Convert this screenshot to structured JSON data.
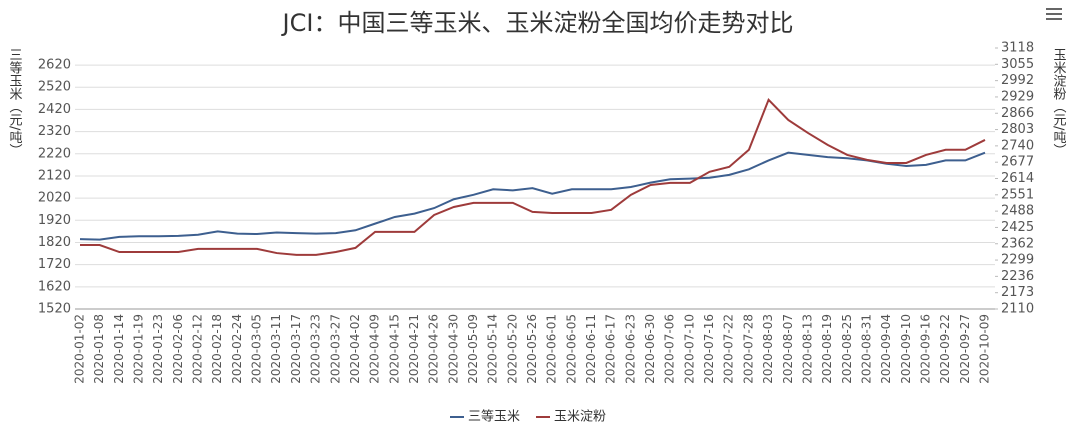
{
  "chart_data": {
    "type": "line",
    "title": "JCI：中国三等玉米、玉米淀粉全国均价走势对比",
    "ylabel": "三等玉米（元/吨）",
    "y2label": "玉米淀粉（元/吨）",
    "categories": [
      "2020-01-02",
      "2020-01-08",
      "2020-01-14",
      "2020-01-19",
      "2020-01-23",
      "2020-02-06",
      "2020-02-12",
      "2020-02-18",
      "2020-02-24",
      "2020-03-05",
      "2020-03-11",
      "2020-03-17",
      "2020-03-23",
      "2020-03-27",
      "2020-04-02",
      "2020-04-09",
      "2020-04-15",
      "2020-04-21",
      "2020-04-26",
      "2020-04-30",
      "2020-05-09",
      "2020-05-14",
      "2020-05-20",
      "2020-05-26",
      "2020-06-01",
      "2020-06-05",
      "2020-06-11",
      "2020-06-17",
      "2020-06-23",
      "2020-06-30",
      "2020-07-06",
      "2020-07-10",
      "2020-07-16",
      "2020-07-22",
      "2020-07-28",
      "2020-08-03",
      "2020-08-07",
      "2020-08-13",
      "2020-08-19",
      "2020-08-25",
      "2020-08-31",
      "2020-09-04",
      "2020-09-10",
      "2020-09-16",
      "2020-09-22",
      "2020-09-27",
      "2020-10-09"
    ],
    "series": [
      {
        "name": "三等玉米",
        "color": "#3d5f8f",
        "values": [
          1835,
          1833,
          1845,
          1848,
          1848,
          1850,
          1855,
          1870,
          1860,
          1858,
          1865,
          1862,
          1860,
          1862,
          1875,
          1905,
          1935,
          1950,
          1975,
          2015,
          2035,
          2060,
          2055,
          2065,
          2040,
          2060,
          2060,
          2060,
          2070,
          2090,
          2105,
          2108,
          2112,
          2125,
          2150,
          2190,
          2225,
          2215,
          2205,
          2200,
          2190,
          2175,
          2165,
          2170,
          2190,
          2190,
          2225
        ]
      },
      {
        "name": "玉米淀粉",
        "color": "#9e3b3b",
        "axis": "y2",
        "values": [
          2357,
          2357,
          2330,
          2330,
          2330,
          2330,
          2342,
          2342,
          2342,
          2342,
          2326,
          2319,
          2319,
          2330,
          2346,
          2408,
          2408,
          2408,
          2473,
          2504,
          2520,
          2520,
          2520,
          2485,
          2481,
          2481,
          2481,
          2493,
          2551,
          2589,
          2597,
          2597,
          2640,
          2659,
          2725,
          2918,
          2840,
          2790,
          2744,
          2705,
          2686,
          2674,
          2674,
          2705,
          2725,
          2725,
          2763
        ]
      }
    ],
    "ylim": [
      1520,
      2697
    ],
    "yticks": [
      1520,
      1620,
      1720,
      1820,
      1920,
      2020,
      2120,
      2220,
      2320,
      2420,
      2520,
      2620
    ],
    "y2lim": [
      2110,
      3118
    ],
    "y2ticks": [
      2110,
      2173,
      2236,
      2299,
      2362,
      2425,
      2488,
      2551,
      2614,
      2677,
      2740,
      2803,
      2866,
      2929,
      2992,
      3055,
      3118
    ],
    "grid": true
  }
}
